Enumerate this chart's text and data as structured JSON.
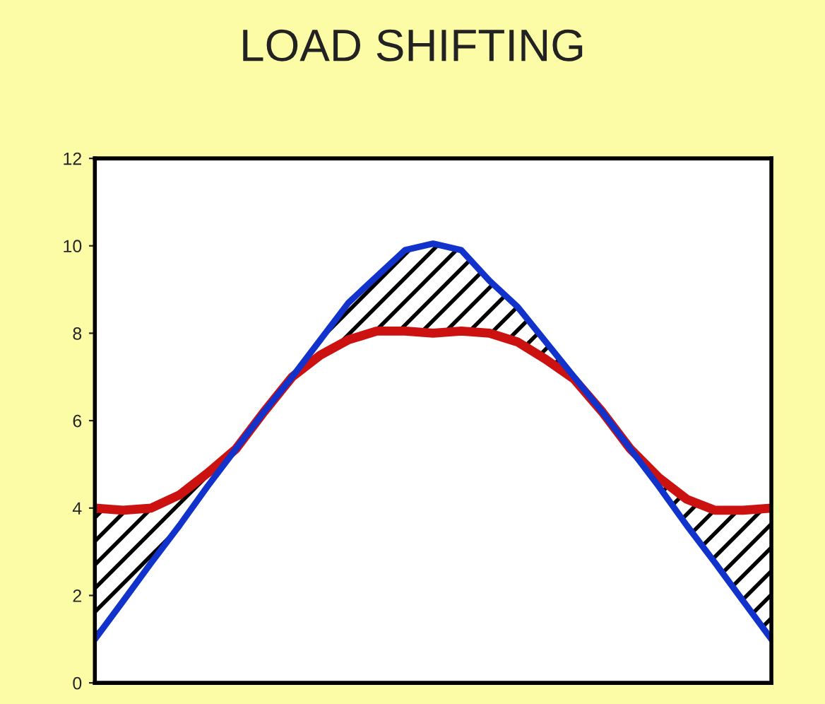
{
  "chart_data": {
    "type": "line",
    "title": "LOAD SHIFTING",
    "categories": [
      null,
      null,
      null,
      null,
      null,
      null,
      null,
      null,
      null,
      null,
      null,
      null,
      null,
      null,
      null,
      null,
      null,
      null,
      null,
      null,
      null,
      null,
      null,
      null,
      null
    ],
    "series": [
      {
        "color": "#cc1111",
        "values": [
          4.0,
          3.95,
          4.0,
          4.3,
          4.8,
          5.35,
          6.2,
          7.0,
          7.5,
          7.85,
          8.05,
          8.05,
          8.0,
          8.05,
          8.0,
          7.8,
          7.4,
          6.95,
          6.2,
          5.35,
          4.7,
          4.2,
          3.95,
          3.95,
          4.0
        ]
      },
      {
        "color": "#1133cc",
        "values": [
          1.0,
          1.87,
          2.75,
          3.6,
          4.5,
          5.35,
          6.2,
          7.0,
          7.85,
          8.7,
          9.3,
          9.9,
          10.05,
          9.9,
          9.2,
          8.6,
          7.8,
          7.0,
          6.2,
          5.35,
          4.5,
          3.6,
          2.75,
          1.87,
          1.0
        ]
      }
    ],
    "ylim": [
      0,
      12
    ],
    "yticks": [
      0,
      2,
      4,
      6,
      8,
      10,
      12
    ],
    "tick_labels": "y",
    "grid": false,
    "marker": "none",
    "line_style": "solid"
  }
}
